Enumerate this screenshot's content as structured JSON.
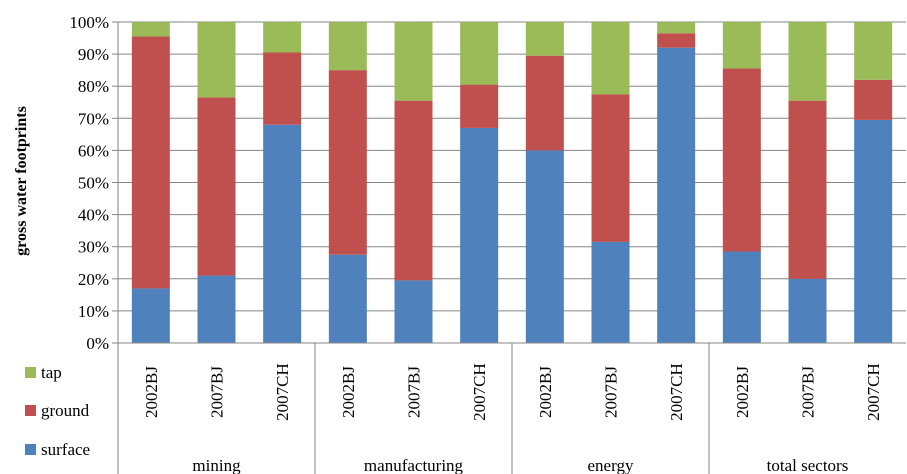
{
  "chart_data": {
    "type": "bar",
    "stacked": true,
    "normalized": true,
    "ylabel": "gross water footprints",
    "ylim": [
      0,
      100
    ],
    "y_ticks": [
      "0%",
      "10%",
      "20%",
      "30%",
      "40%",
      "50%",
      "60%",
      "70%",
      "80%",
      "90%",
      "100%"
    ],
    "grid": "horizontal",
    "legend_position": "bottom-left",
    "groups": [
      {
        "name": "mining",
        "categories": [
          "2002BJ",
          "2007BJ",
          "2007CH"
        ]
      },
      {
        "name": "manufacturing",
        "categories": [
          "2002BJ",
          "2007BJ",
          "2007CH"
        ]
      },
      {
        "name": "energy",
        "categories": [
          "2002BJ",
          "2007BJ",
          "2007CH"
        ]
      },
      {
        "name": "total sectors",
        "categories": [
          "2002BJ",
          "2007BJ",
          "2007CH"
        ]
      }
    ],
    "series": [
      {
        "name": "surface",
        "color": "#4f81bd",
        "values": [
          17,
          21,
          68,
          27.5,
          19.5,
          67,
          60,
          31.5,
          92,
          28.5,
          20,
          69.5
        ]
      },
      {
        "name": "ground",
        "color": "#c0504d",
        "values": [
          78.5,
          55.5,
          22.5,
          57.5,
          56,
          13.5,
          29.5,
          46,
          4.5,
          57,
          55.5,
          12.5
        ]
      },
      {
        "name": "tap",
        "color": "#9bbb59",
        "values": [
          4.5,
          23.5,
          9.5,
          15,
          24.5,
          19.5,
          10.5,
          22.5,
          3.5,
          14.5,
          24.5,
          18
        ]
      }
    ],
    "legend_order": [
      "tap",
      "ground",
      "surface"
    ]
  }
}
